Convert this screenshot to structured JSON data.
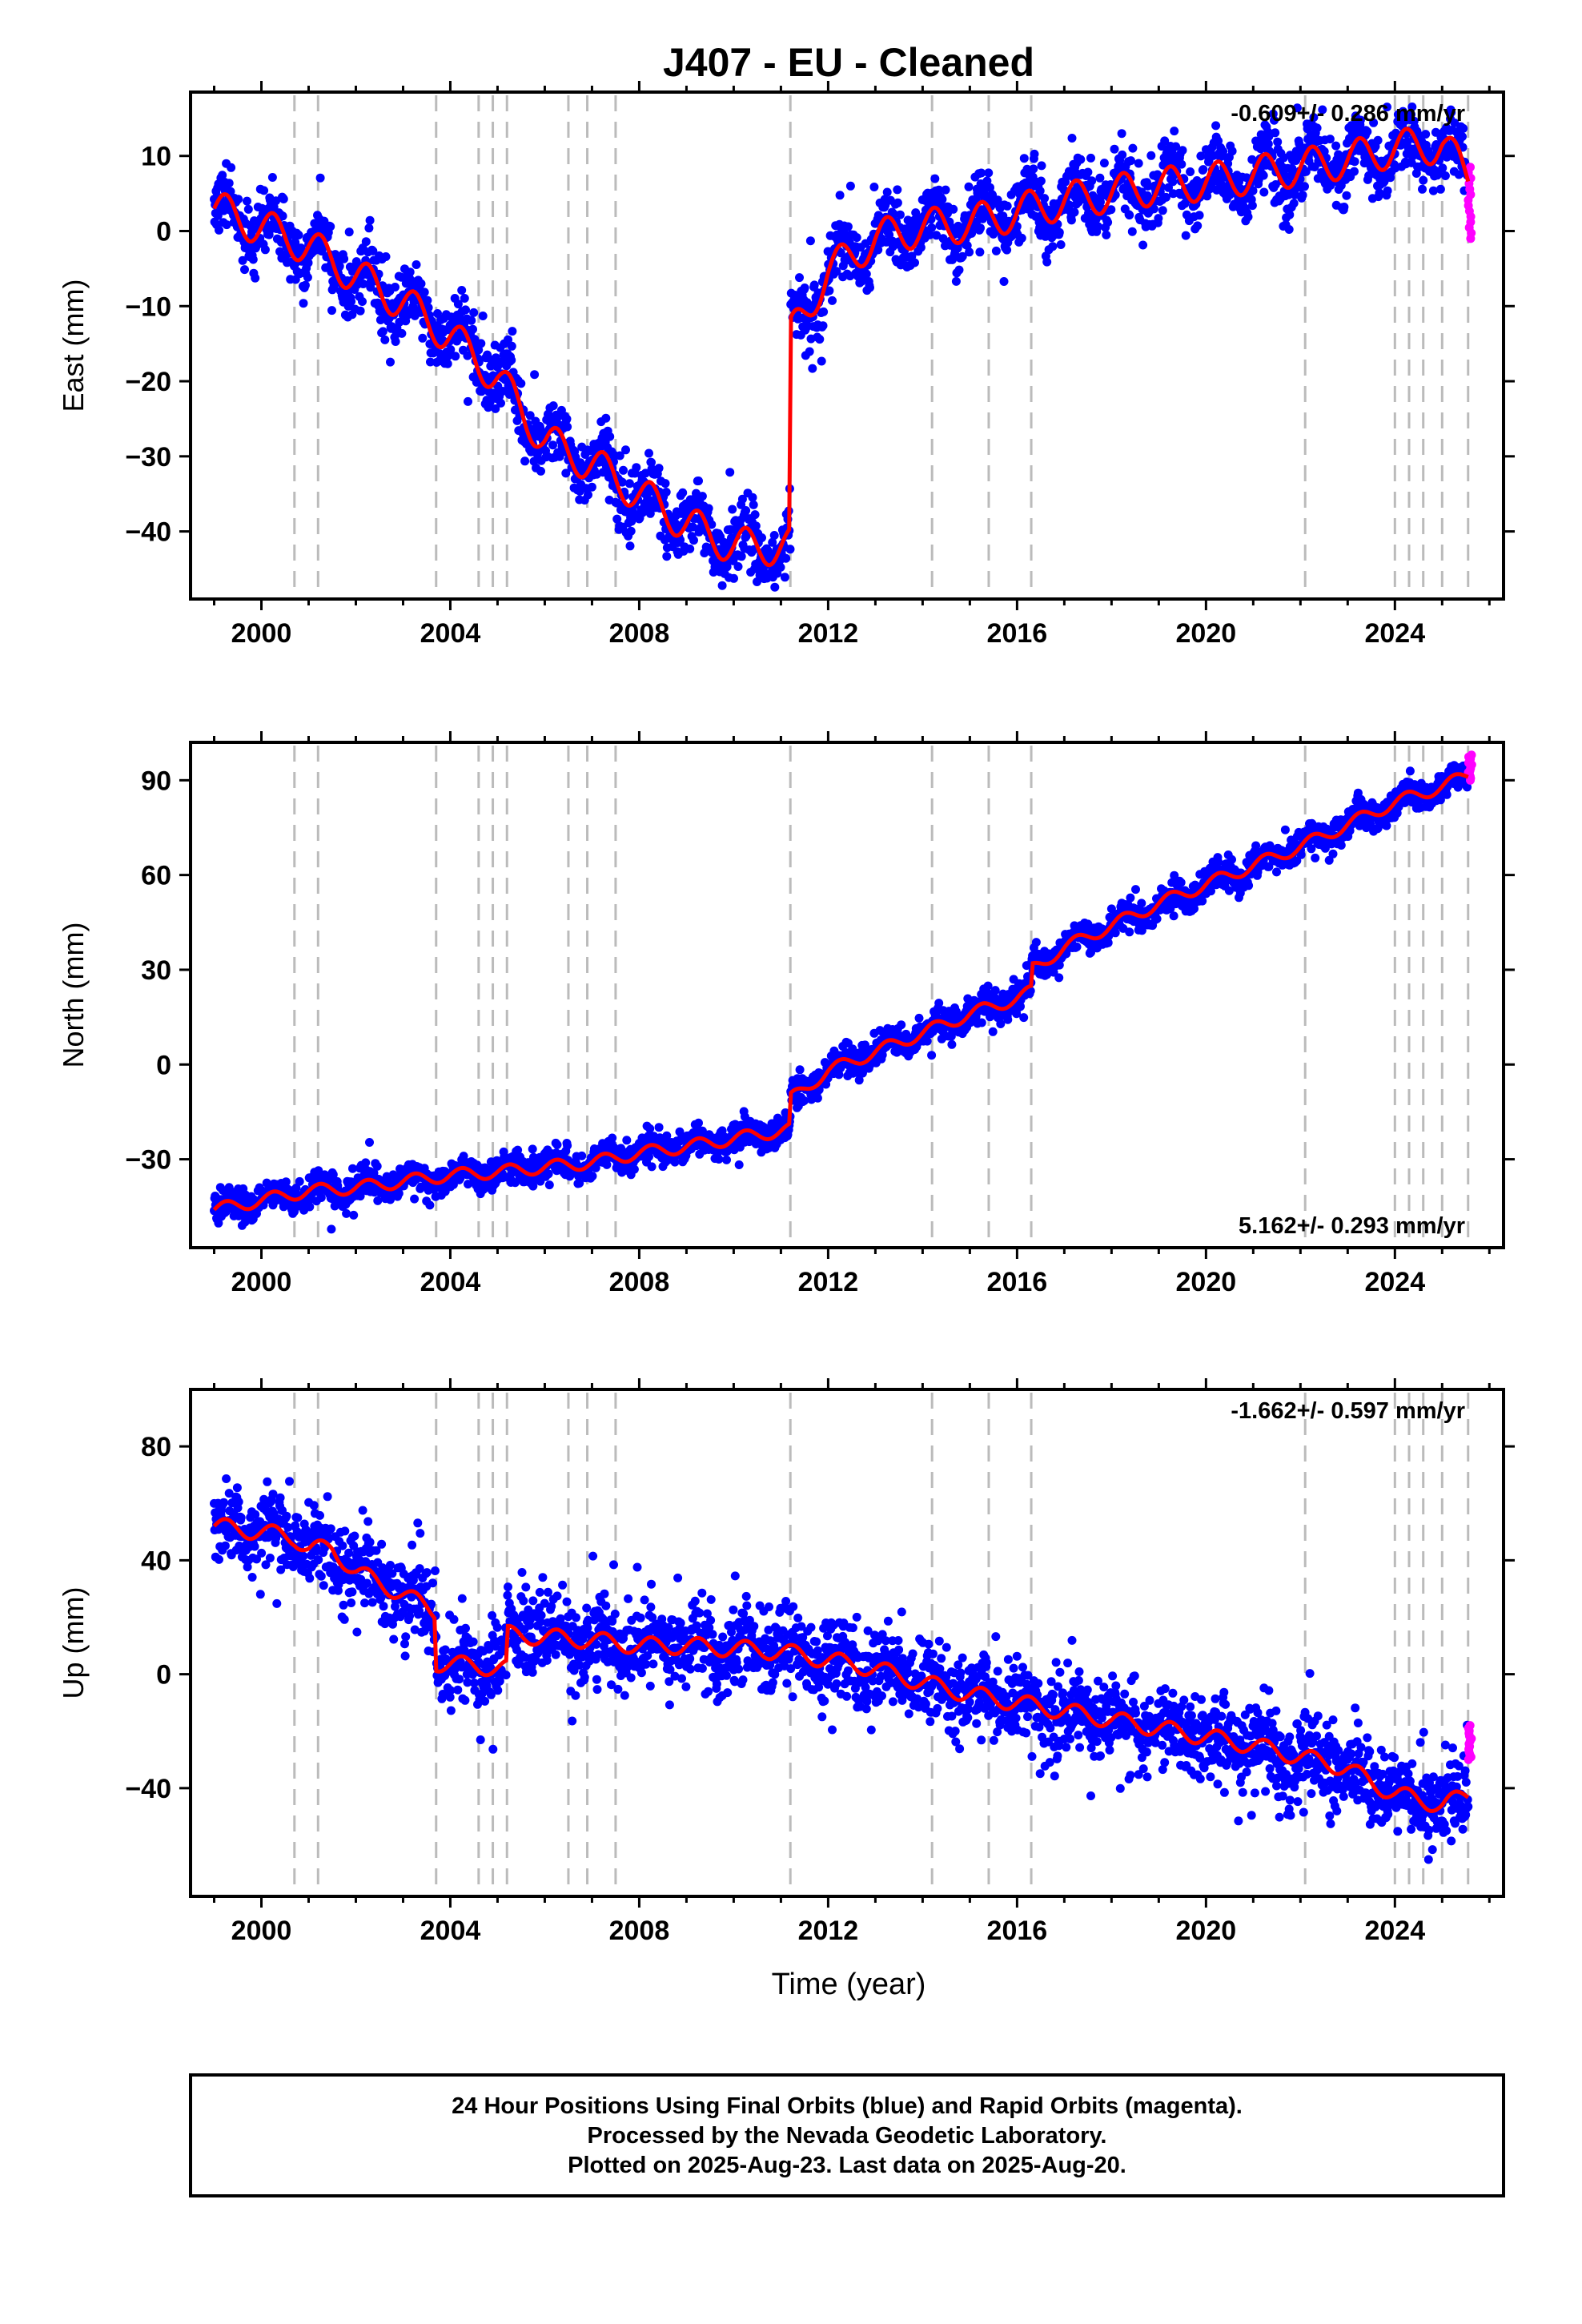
{
  "chart_data": {
    "type": "scatter",
    "title": "J407  - EU - Cleaned",
    "xlabel": "Time (year)",
    "xlim": [
      1998.5,
      2026.3
    ],
    "x_ticks": [
      2000,
      2004,
      2008,
      2012,
      2016,
      2020,
      2024
    ],
    "colors": {
      "final": "#0000ff",
      "rapid": "#ff00ff",
      "model": "#ff0000",
      "offsets": "#bbbbbb"
    },
    "offset_lines": [
      2000.7,
      2001.2,
      2003.7,
      2004.6,
      2004.9,
      2005.2,
      2006.5,
      2006.9,
      2007.5,
      2011.2,
      2014.2,
      2015.4,
      2016.3,
      2022.1,
      2024.0,
      2024.3,
      2024.6,
      2025.0,
      2025.55
    ],
    "panels": [
      {
        "id": "east",
        "ylabel": "East (mm)",
        "ylim": [
          -49,
          18.5
        ],
        "y_ticks": [
          10,
          0,
          -10,
          -20,
          -30,
          -40
        ],
        "y_tick_labels": [
          "10",
          "0",
          "−10",
          "−20",
          "−30",
          "−40"
        ],
        "rate": "-0.609+/- 0.286 mm/yr",
        "rate_position": "top-right",
        "scatter_sd": 2.2,
        "model": {
          "x": [
            1999.0,
            2000.0,
            2001.0,
            2002.0,
            2003.0,
            2004.0,
            2005.0,
            2006.0,
            2007.0,
            2008.0,
            2009.0,
            2010.0,
            2011.0,
            2011.2,
            2011.2,
            2012.0,
            2013.0,
            2014.0,
            2015.0,
            2016.0,
            2017.0,
            2018.0,
            2019.0,
            2020.0,
            2021.0,
            2022.0,
            2023.0,
            2024.0,
            2025.0,
            2025.6
          ],
          "y": [
            3.0,
            0.5,
            -2.0,
            -6.0,
            -9.5,
            -14.0,
            -19.5,
            -28.0,
            -31.0,
            -35.0,
            -39.0,
            -42.0,
            -42.0,
            -42.0,
            -14.0,
            -5.5,
            -1.0,
            0.5,
            1.0,
            2.5,
            4.0,
            5.0,
            6.0,
            6.5,
            7.5,
            8.5,
            9.5,
            11.0,
            11.5,
            7.0
          ],
          "seasonal_amp": 2.5
        },
        "rapid": {
          "x_range": [
            2025.55,
            2025.63
          ],
          "y_range": [
            -1.0,
            8.5
          ]
        }
      },
      {
        "id": "north",
        "ylabel": "North (mm)",
        "ylim": [
          -58,
          102
        ],
        "y_ticks": [
          90,
          60,
          30,
          0,
          -30
        ],
        "y_tick_labels": [
          "90",
          "60",
          "30",
          "0",
          "−30"
        ],
        "rate": "5.162+/- 0.293 mm/yr",
        "rate_position": "bottom-right",
        "scatter_sd": 2.3,
        "model": {
          "x": [
            1999.0,
            2000.0,
            2001.0,
            2002.0,
            2003.0,
            2004.0,
            2005.0,
            2006.0,
            2007.0,
            2008.0,
            2009.0,
            2010.0,
            2011.0,
            2011.2,
            2011.2,
            2012.0,
            2013.0,
            2014.0,
            2015.0,
            2016.0,
            2016.3,
            2016.3,
            2017.0,
            2018.0,
            2019.0,
            2020.0,
            2021.0,
            2022.0,
            2023.0,
            2024.0,
            2025.0,
            2025.6
          ],
          "y": [
            -46.0,
            -43.0,
            -40.0,
            -39.0,
            -37.0,
            -35.0,
            -34.0,
            -32.5,
            -31.0,
            -28.0,
            -26.0,
            -23.5,
            -21.0,
            -20.5,
            -11.0,
            -2.0,
            4.0,
            10.0,
            16.0,
            21.0,
            23.0,
            30.0,
            37.0,
            44.0,
            51.0,
            57.0,
            63.0,
            69.0,
            76.0,
            83.0,
            88.0,
            92.0
          ],
          "seasonal_amp": 2.0
        },
        "rapid": {
          "x_range": [
            2025.55,
            2025.63
          ],
          "y_range": [
            90.0,
            98.0
          ]
        }
      },
      {
        "id": "up",
        "ylabel": "Up (mm)",
        "ylim": [
          -78,
          100
        ],
        "y_ticks": [
          80,
          40,
          0,
          -40
        ],
        "y_tick_labels": [
          "80",
          "40",
          "0",
          "−40"
        ],
        "rate": "-1.662+/- 0.597 mm/yr",
        "rate_position": "top-right",
        "scatter_sd": 7.0,
        "model": {
          "x": [
            1999.0,
            2000.0,
            2000.7,
            2001.0,
            2001.5,
            2002.0,
            2003.0,
            2003.7,
            2003.7,
            2004.5,
            2005.2,
            2005.2,
            2006.0,
            2007.0,
            2008.0,
            2009.0,
            2010.0,
            2011.0,
            2012.0,
            2013.0,
            2014.0,
            2015.0,
            2016.0,
            2017.0,
            2018.0,
            2019.0,
            2020.0,
            2021.0,
            2022.0,
            2023.0,
            2023.5,
            2024.0,
            2025.0,
            2025.6
          ],
          "y": [
            52.0,
            50.0,
            48.0,
            44.0,
            44.0,
            36.0,
            28.0,
            22.0,
            4.0,
            3.0,
            2.0,
            14.0,
            13.0,
            12.0,
            10.0,
            10.0,
            9.0,
            8.0,
            5.0,
            2.0,
            -3.0,
            -7.0,
            -10.0,
            -13.0,
            -16.0,
            -19.0,
            -22.0,
            -25.0,
            -29.0,
            -33.0,
            -38.0,
            -42.0,
            -46.0,
            -42.0
          ],
          "seasonal_amp": 3.0
        },
        "rapid": {
          "x_range": [
            2025.55,
            2025.63
          ],
          "y_range": [
            -30.0,
            -18.0
          ]
        }
      }
    ],
    "footer": [
      "24 Hour Positions Using Final Orbits (blue) and Rapid Orbits (magenta).",
      "Processed by the Nevada Geodetic Laboratory.",
      "Plotted on 2025-Aug-23. Last data on 2025-Aug-20."
    ]
  }
}
